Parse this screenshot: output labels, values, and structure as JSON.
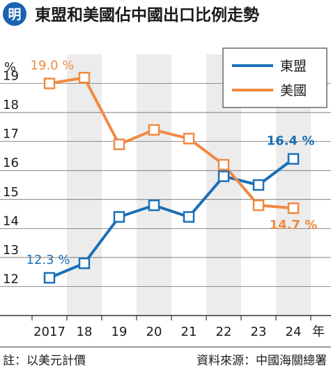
{
  "header": {
    "brand_glyph": "明",
    "title": "東盟和美國佔中國出口比例走勢"
  },
  "colors": {
    "asean": "#1a70b8",
    "usa": "#f08a42",
    "band": "#ececec",
    "grid": "#555555",
    "brand_bg": "#1a63b0"
  },
  "icons": {
    "brand": "circle-logo-icon"
  },
  "chart_data": {
    "type": "line",
    "y_unit": "%",
    "x_unit": "年",
    "categories": [
      "2017",
      "18",
      "19",
      "20",
      "21",
      "22",
      "23",
      "24"
    ],
    "ylim": [
      11,
      20
    ],
    "y_ticks": [
      "12",
      "13",
      "14",
      "15",
      "16",
      "17",
      "18",
      "19"
    ],
    "grid": true,
    "legend_position": "top-right",
    "series": [
      {
        "name": "東盟",
        "color": "#1a70b8",
        "values": [
          12.3,
          12.8,
          14.4,
          14.8,
          14.4,
          15.8,
          15.5,
          16.4
        ]
      },
      {
        "name": "美國",
        "color": "#f08a42",
        "values": [
          19.0,
          19.2,
          16.9,
          17.4,
          17.1,
          16.2,
          14.8,
          14.7
        ]
      }
    ],
    "data_labels": [
      {
        "series": 0,
        "index": 0,
        "text": "12.3 %"
      },
      {
        "series": 0,
        "index": 7,
        "text": "16.4 %"
      },
      {
        "series": 1,
        "index": 0,
        "text": "19.0 %"
      },
      {
        "series": 1,
        "index": 7,
        "text": "14.7 %"
      }
    ]
  },
  "footer": {
    "note": "註：以美元計價",
    "source": "資料來源：中國海關總署"
  }
}
